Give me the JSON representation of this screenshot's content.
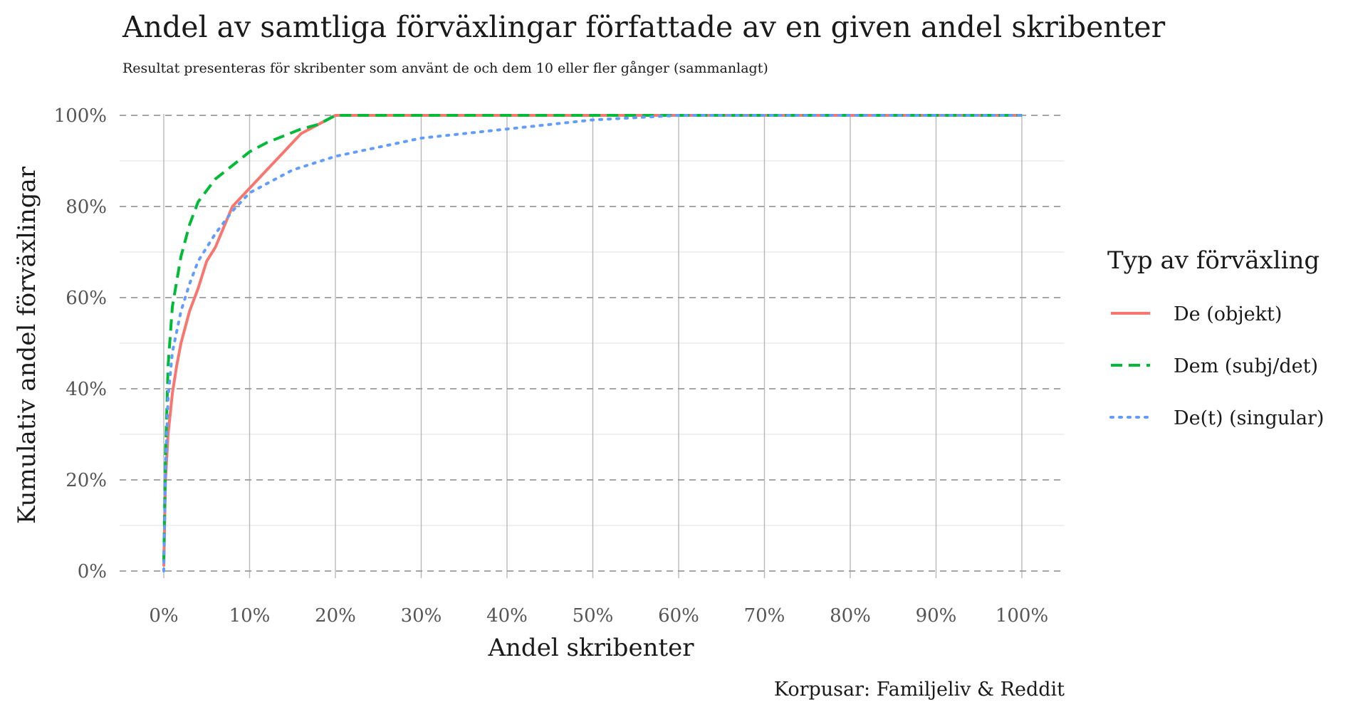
{
  "chart_data": {
    "type": "line",
    "title": "Andel av samtliga förväxlingar författade av en given andel skribenter",
    "subtitle": "Resultat presenteras för skribenter som använt de och dem 10 eller fler gånger (sammanlagt)",
    "xlabel": "Andel skribenter",
    "ylabel": "Kumulativ andel förväxlingar",
    "caption": "Korpusar: Familjeliv & Reddit",
    "xlim": [
      0,
      100
    ],
    "ylim": [
      0,
      100
    ],
    "x_ticks": [
      "0%",
      "10%",
      "20%",
      "30%",
      "40%",
      "50%",
      "60%",
      "70%",
      "80%",
      "90%",
      "100%"
    ],
    "y_ticks": [
      "0%",
      "20%",
      "40%",
      "60%",
      "80%",
      "100%"
    ],
    "grid": true,
    "legend": {
      "title": "Typ av förväxling",
      "position": "right"
    },
    "series": [
      {
        "name": "De (objekt)",
        "color": "#F8766D",
        "dash": "solid",
        "x": [
          0,
          0.2,
          0.5,
          1,
          1.5,
          2,
          3,
          4,
          5,
          6,
          8,
          10,
          12,
          14,
          16,
          18,
          20,
          30,
          40,
          50,
          60,
          70,
          80,
          90,
          100
        ],
        "y": [
          1,
          20,
          30,
          39,
          45,
          50,
          57,
          62,
          68,
          71,
          80,
          84,
          88,
          92,
          96,
          98,
          100,
          100,
          100,
          100,
          100,
          100,
          100,
          100,
          100
        ]
      },
      {
        "name": "Dem (subj/det)",
        "color": "#00BA38",
        "dash": "dashed",
        "x": [
          0,
          0.2,
          0.5,
          1,
          2,
          3,
          4,
          6,
          8,
          10,
          12,
          14,
          16,
          18,
          20,
          30,
          40,
          50,
          60,
          70,
          80,
          90,
          100
        ],
        "y": [
          2,
          25,
          45,
          58,
          69,
          76,
          81,
          86,
          89,
          92,
          94,
          95.5,
          97,
          98,
          100,
          100,
          100,
          100,
          100,
          100,
          100,
          100,
          100
        ]
      },
      {
        "name": "De(t) (singular)",
        "color": "#619CFF",
        "dash": "dotted",
        "x": [
          0,
          0.2,
          0.5,
          1,
          2,
          3,
          4,
          6,
          8,
          10,
          15,
          20,
          25,
          30,
          35,
          40,
          45,
          50,
          55,
          60,
          70,
          80,
          90,
          100
        ],
        "y": [
          0,
          22,
          38,
          48,
          57,
          63,
          68,
          74,
          79,
          83,
          88,
          91,
          93,
          95,
          96,
          97,
          98,
          99,
          99.5,
          100,
          100,
          100,
          100,
          100
        ]
      }
    ]
  }
}
